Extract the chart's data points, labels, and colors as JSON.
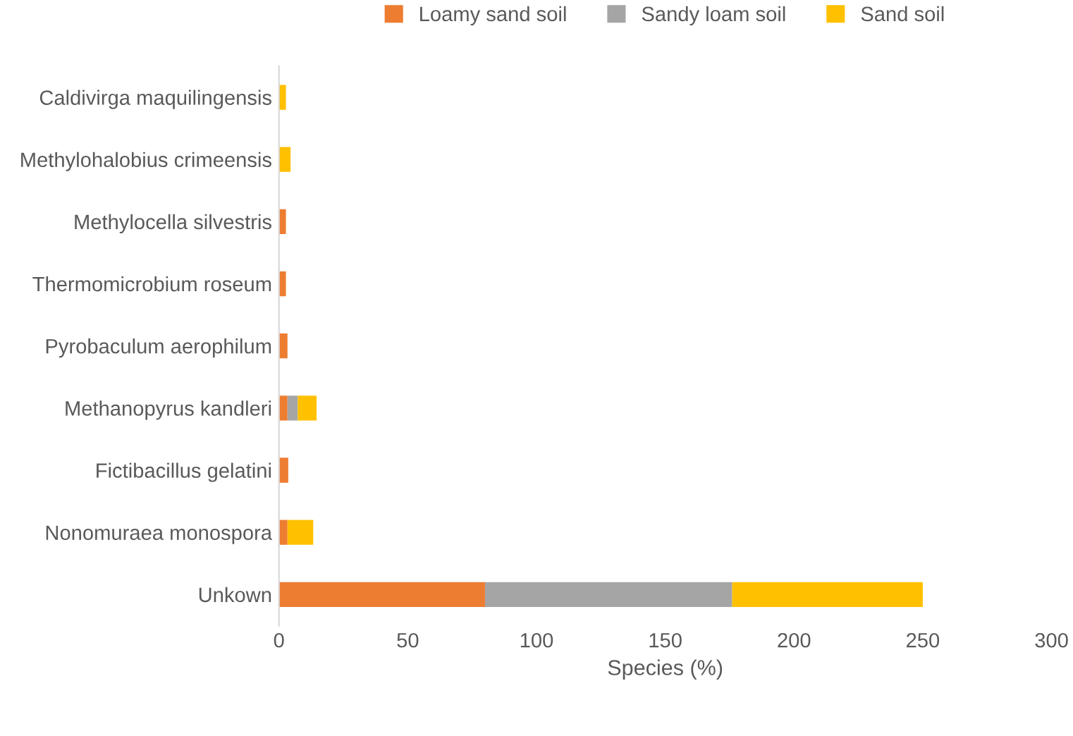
{
  "chart_data": {
    "type": "bar",
    "orientation": "horizontal",
    "stacked": true,
    "categories": [
      "Caldivirga maquilingensis",
      "Methylohalobius crimeensis",
      "Methylocella silvestris",
      "Thermomicrobium roseum",
      "Pyrobaculum aerophilum",
      "Methanopyrus kandleri",
      "Fictibacillus gelatini",
      "Nonomuraea monospora",
      "Unkown"
    ],
    "series": [
      {
        "name": "Loamy sand soil",
        "color": "#ed7d31",
        "values": [
          null,
          null,
          2.7,
          2.7,
          3.3,
          3.3,
          3.6,
          3.3,
          80
        ]
      },
      {
        "name": "Sandy loam soil",
        "color": "#a5a5a5",
        "values": [
          null,
          null,
          null,
          null,
          null,
          4,
          null,
          null,
          96
        ]
      },
      {
        "name": "Sand soil",
        "color": "#ffc000",
        "values": [
          2.7,
          4.5,
          null,
          null,
          null,
          7.3,
          null,
          10,
          74
        ]
      }
    ],
    "xlabel": "Species (%)",
    "xlim": [
      0,
      300
    ],
    "xticks": [
      0,
      50,
      100,
      150,
      200,
      250,
      300
    ],
    "grid": false,
    "legend": "top"
  }
}
